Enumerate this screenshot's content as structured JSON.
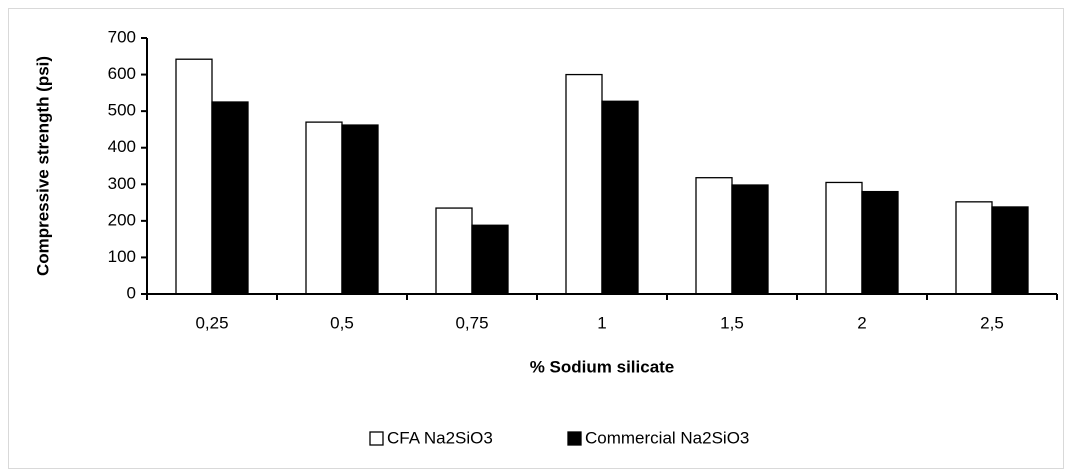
{
  "chart_data": {
    "type": "bar",
    "xlabel": "% Sodium silicate",
    "ylabel": "Compressive strength (psi)",
    "categories": [
      "0,25",
      "0,5",
      "0,75",
      "1",
      "1,5",
      "2",
      "2,5"
    ],
    "series": [
      {
        "name": "CFA Na2SiO3",
        "color": "#ffffff",
        "values": [
          642,
          470,
          235,
          600,
          318,
          305,
          252
        ]
      },
      {
        "name": "Commercial Na2SiO3",
        "color": "#000000",
        "values": [
          525,
          462,
          188,
          527,
          298,
          280,
          238
        ]
      }
    ],
    "ylim": [
      0,
      700
    ],
    "yticks": [
      0,
      100,
      200,
      300,
      400,
      500,
      600,
      700
    ],
    "grid": false,
    "legend": "bottom"
  }
}
